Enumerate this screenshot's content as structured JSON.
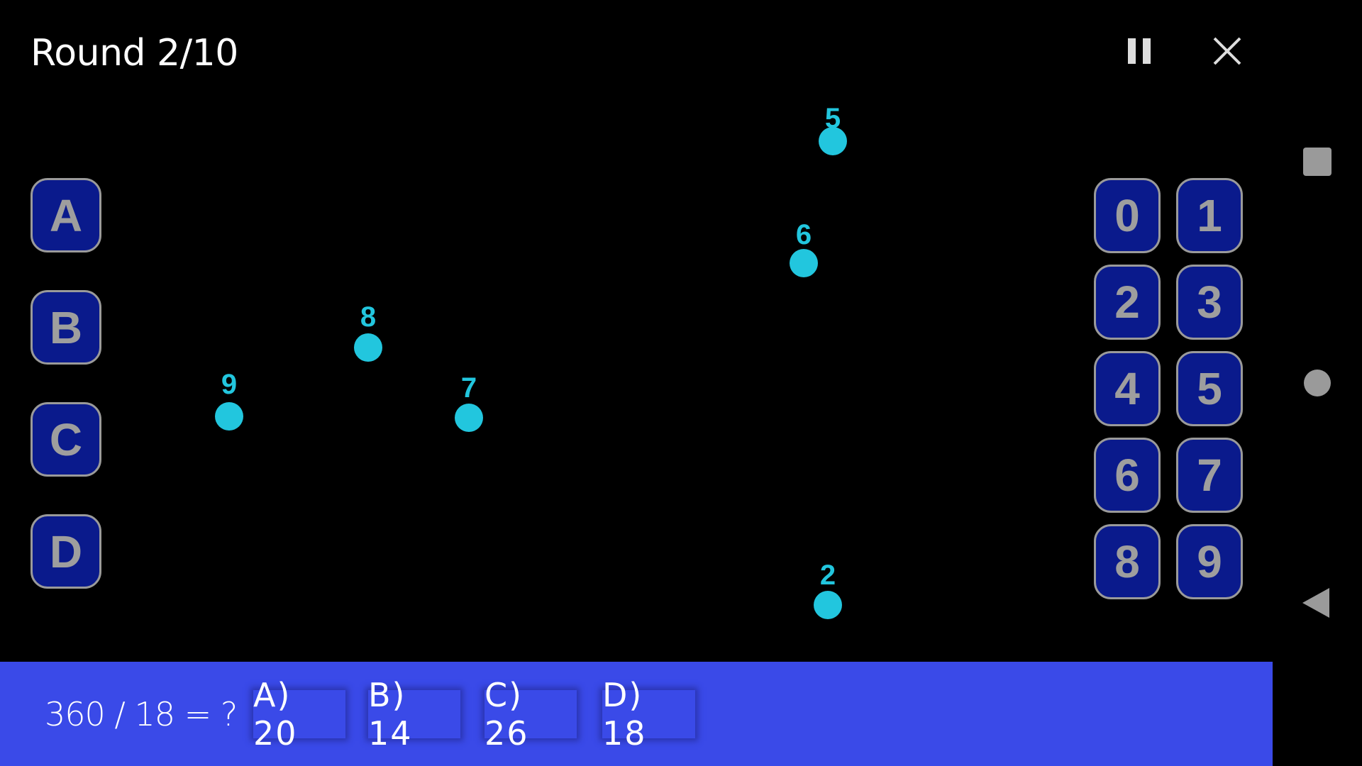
{
  "header": {
    "title": "Round 2/10",
    "pause_icon": "pause-icon",
    "close_icon": "close-icon"
  },
  "answer_buttons": [
    "A",
    "B",
    "C",
    "D"
  ],
  "number_pad": [
    "0",
    "1",
    "2",
    "3",
    "4",
    "5",
    "6",
    "7",
    "8",
    "9"
  ],
  "dots": [
    {
      "label": "5"
    },
    {
      "label": "6"
    },
    {
      "label": "8"
    },
    {
      "label": "9"
    },
    {
      "label": "7"
    },
    {
      "label": "2"
    }
  ],
  "question": {
    "text": "360 / 18 = ?",
    "options": [
      "A) 20",
      "B) 14",
      "C) 26",
      "D) 18"
    ]
  },
  "system_nav": [
    "recents-square-icon",
    "home-circle-icon",
    "back-triangle-icon"
  ],
  "colors": {
    "background": "#000000",
    "button_fill": "#0a1a8c",
    "dot": "#22c6de",
    "question_bar": "#3a4ae8"
  }
}
